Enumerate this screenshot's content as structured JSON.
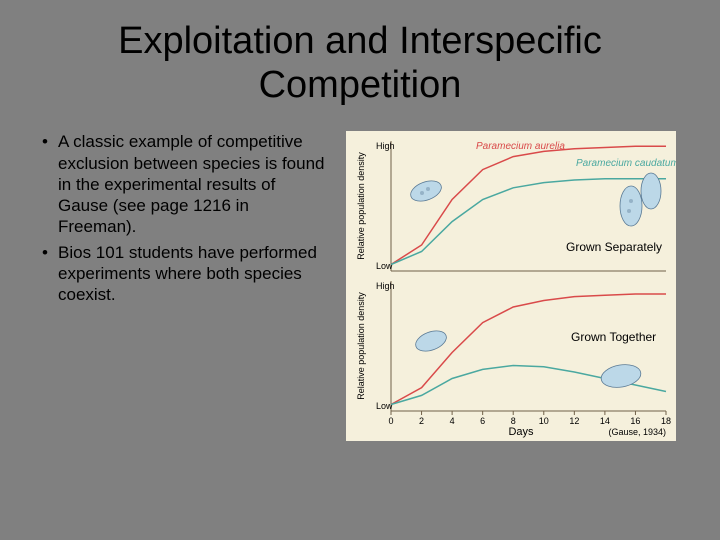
{
  "title": "Exploitation and Interspecific Competition",
  "bullets": [
    "A classic example of competitive exclusion between species is found in the experimental results of Gause (see page 1216 in Freeman).",
    "Bios 101 students have performed experiments where both species coexist."
  ],
  "chart": {
    "background_color": "#f5f0dc",
    "species1": {
      "name": "Paramecium aurelia",
      "color": "#d94a4a"
    },
    "species2": {
      "name": "Paramecium caudatum",
      "color": "#4aa8a0"
    },
    "panel1": {
      "label": "Grown Separately",
      "y_high": "High",
      "y_low": "Low",
      "ylabel": "Relative population density"
    },
    "panel2": {
      "label": "Grown Together",
      "y_high": "High",
      "y_low": "Low",
      "ylabel": "Relative population density"
    },
    "xaxis": {
      "label": "Days",
      "ticks": [
        "0",
        "2",
        "4",
        "6",
        "8",
        "10",
        "12",
        "14",
        "16",
        "18"
      ],
      "source": "(Gause, 1934)"
    },
    "curves": {
      "panel1_sp1": [
        [
          0,
          5
        ],
        [
          2,
          20
        ],
        [
          4,
          55
        ],
        [
          6,
          78
        ],
        [
          8,
          88
        ],
        [
          10,
          92
        ],
        [
          12,
          94
        ],
        [
          14,
          95
        ],
        [
          16,
          96
        ],
        [
          18,
          96
        ]
      ],
      "panel1_sp2": [
        [
          0,
          5
        ],
        [
          2,
          15
        ],
        [
          4,
          38
        ],
        [
          6,
          55
        ],
        [
          8,
          64
        ],
        [
          10,
          68
        ],
        [
          12,
          70
        ],
        [
          14,
          71
        ],
        [
          16,
          71
        ],
        [
          18,
          71
        ]
      ],
      "panel2_sp1": [
        [
          0,
          5
        ],
        [
          2,
          18
        ],
        [
          4,
          45
        ],
        [
          6,
          68
        ],
        [
          8,
          80
        ],
        [
          10,
          85
        ],
        [
          12,
          88
        ],
        [
          14,
          89
        ],
        [
          16,
          90
        ],
        [
          18,
          90
        ]
      ],
      "panel2_sp2": [
        [
          0,
          5
        ],
        [
          2,
          12
        ],
        [
          4,
          25
        ],
        [
          6,
          32
        ],
        [
          8,
          35
        ],
        [
          10,
          34
        ],
        [
          12,
          30
        ],
        [
          14,
          25
        ],
        [
          16,
          20
        ],
        [
          18,
          15
        ]
      ]
    },
    "axis_color": "#706048",
    "tick_color": "#706048",
    "text_color": "#000000",
    "organism_fill": "#bcd8e8",
    "organism_stroke": "#5a7a95"
  }
}
